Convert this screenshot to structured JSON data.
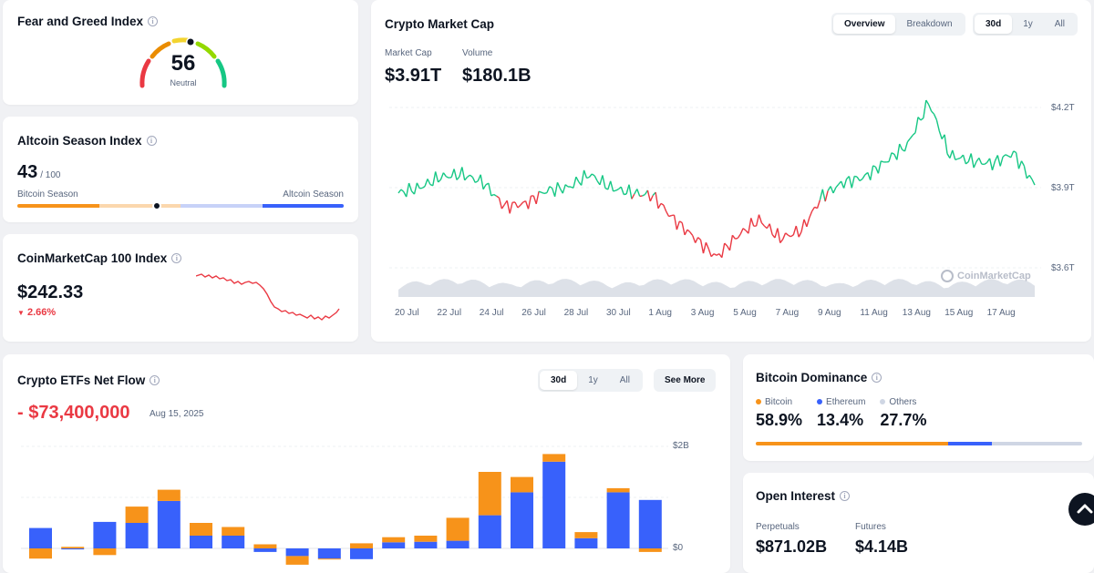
{
  "fear_greed": {
    "title": "Fear and Greed Index",
    "value": "56",
    "label": "Neutral",
    "level": 56
  },
  "altcoin": {
    "title": "Altcoin Season Index",
    "value": "43",
    "suffix": "/ 100",
    "left_label": "Bitcoin Season",
    "right_label": "Altcoin Season",
    "level": 43
  },
  "cmc100": {
    "title": "CoinMarketCap 100 Index",
    "value": "$242.33",
    "change": "2.66%",
    "change_direction": "down"
  },
  "market_cap": {
    "title": "Crypto Market Cap",
    "tabs": [
      "Overview",
      "Breakdown"
    ],
    "active_tab": "Overview",
    "ranges": [
      "30d",
      "1y",
      "All"
    ],
    "active_range": "30d",
    "mc_label": "Market Cap",
    "mc_value": "$3.91T",
    "vol_label": "Volume",
    "vol_value": "$180.1B",
    "watermark": "CoinMarketCap",
    "y_ticks": [
      "$4.2T",
      "$3.9T",
      "$3.6T"
    ],
    "x_ticks": [
      "20 Jul",
      "22 Jul",
      "24 Jul",
      "26 Jul",
      "28 Jul",
      "30 Jul",
      "1 Aug",
      "3 Aug",
      "5 Aug",
      "7 Aug",
      "9 Aug",
      "11 Aug",
      "13 Aug",
      "15 Aug",
      "17 Aug"
    ]
  },
  "etf": {
    "title": "Crypto ETFs Net Flow",
    "ranges": [
      "30d",
      "1y",
      "All"
    ],
    "active_range": "30d",
    "see_more": "See More",
    "value": "- $73,400,000",
    "date": "Aug 15, 2025",
    "y_ticks": [
      "$2B",
      "$0"
    ]
  },
  "dominance": {
    "title": "Bitcoin Dominance",
    "items": [
      {
        "name": "Bitcoin",
        "value": "58.9%",
        "pct": 58.9,
        "color": "#f7931a"
      },
      {
        "name": "Ethereum",
        "value": "13.4%",
        "pct": 13.4,
        "color": "#3861fb"
      },
      {
        "name": "Others",
        "value": "27.7%",
        "pct": 27.7,
        "color": "#cfd6e4"
      }
    ]
  },
  "open_interest": {
    "title": "Open Interest",
    "perp_label": "Perpetuals",
    "perp_value": "$871.02B",
    "fut_label": "Futures",
    "fut_value": "$4.14B"
  },
  "chart_data": [
    {
      "type": "line",
      "title": "Crypto Market Cap",
      "x": [
        "19 Jul",
        "20 Jul",
        "21 Jul",
        "22 Jul",
        "23 Jul",
        "24 Jul",
        "25 Jul",
        "26 Jul",
        "27 Jul",
        "28 Jul",
        "29 Jul",
        "30 Jul",
        "31 Jul",
        "1 Aug",
        "2 Aug",
        "3 Aug",
        "4 Aug",
        "5 Aug",
        "6 Aug",
        "7 Aug",
        "8 Aug",
        "9 Aug",
        "10 Aug",
        "11 Aug",
        "12 Aug",
        "13 Aug",
        "14 Aug",
        "15 Aug",
        "16 Aug",
        "17 Aug",
        "18 Aug"
      ],
      "y": [
        3.88,
        3.9,
        3.94,
        3.95,
        3.92,
        3.83,
        3.84,
        3.89,
        3.9,
        3.95,
        3.9,
        3.88,
        3.87,
        3.78,
        3.71,
        3.64,
        3.72,
        3.78,
        3.71,
        3.74,
        3.87,
        3.92,
        3.94,
        4.0,
        4.06,
        4.22,
        4.02,
        4.0,
        3.99,
        4.03,
        3.91
      ],
      "ylim": [
        3.6,
        4.2
      ],
      "y_unit": "T USD"
    },
    {
      "type": "bar",
      "title": "Crypto ETFs Net Flow",
      "categories": [
        "1",
        "2",
        "3",
        "4",
        "5",
        "6",
        "7",
        "8",
        "9",
        "10",
        "11",
        "12",
        "13",
        "14",
        "15",
        "16",
        "17",
        "18",
        "19",
        "20"
      ],
      "series": [
        {
          "name": "Bitcoin",
          "values": [
            0.4,
            -0.02,
            0.52,
            0.5,
            0.93,
            0.25,
            0.25,
            -0.07,
            -0.15,
            -0.2,
            -0.21,
            0.12,
            0.13,
            0.15,
            0.65,
            1.1,
            1.7,
            0.2,
            1.1,
            0.95
          ]
        },
        {
          "name": "Ethereum",
          "values": [
            -0.2,
            0.03,
            -0.13,
            0.32,
            0.22,
            0.25,
            0.17,
            0.08,
            -0.17,
            -0.01,
            0.1,
            0.1,
            0.12,
            0.45,
            0.85,
            0.3,
            0.15,
            0.12,
            0.08,
            -0.07
          ]
        }
      ],
      "ylim": [
        -0.3,
        2.0
      ]
    }
  ]
}
